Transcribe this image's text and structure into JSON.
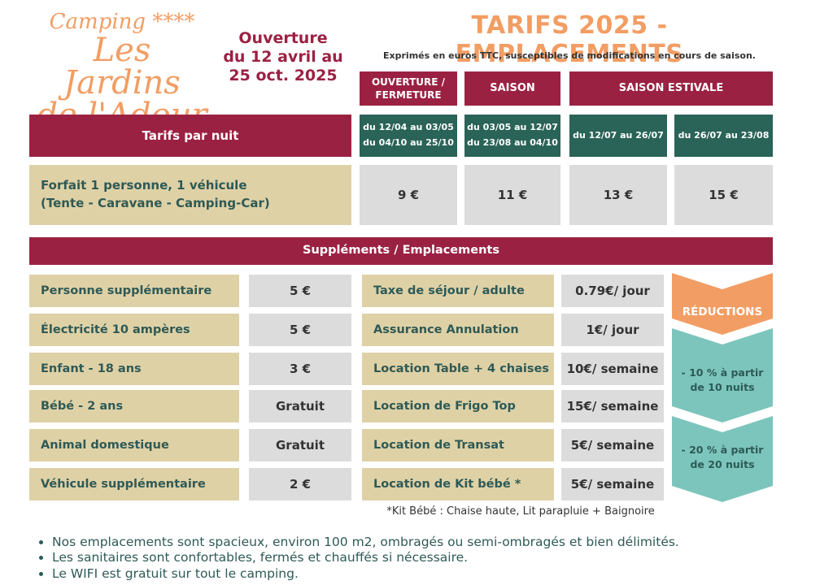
{
  "logo": {
    "line1": "Camping ****",
    "line2": "Les Jardins",
    "line3": "de l'Adour"
  },
  "opening": {
    "l1": "Ouverture",
    "l2": "du 12 avril au",
    "l3": "25 oct. 2025"
  },
  "title": "TARIFS 2025 - EMPLACEMENTS",
  "subtitle": "Exprimés en euros TTC, susceptibles de modifications en cours de saison.",
  "periods": {
    "p1": "OUVERTURE /\nFERMETURE",
    "p2": "SAISON",
    "p3": "SAISON ESTIVALE"
  },
  "nightly_label": "Tarifs par nuit",
  "dates": [
    "du 12/04 au 03/05\ndu 04/10 au 25/10",
    "du 03/05 au 12/07\ndu 23/08 au 04/10",
    "du 12/07 au 26/07",
    "du 26/07 au 23/08"
  ],
  "forfait": {
    "label": "Forfait 1 personne, 1 véhicule\n(Tente - Caravane - Camping-Car)",
    "prices": [
      "9 €",
      "11 €",
      "13 €",
      "15 €"
    ]
  },
  "supplements_title": "Suppléments / Emplacements",
  "supp_left": [
    {
      "label": "Personne supplémentaire",
      "price": "5 €"
    },
    {
      "label": "Électricité 10 ampères",
      "price": "5 €"
    },
    {
      "label": "Enfant - 18 ans",
      "price": "3 €"
    },
    {
      "label": "Bébé - 2 ans",
      "price": "Gratuit"
    },
    {
      "label": "Animal domestique",
      "price": "Gratuit"
    },
    {
      "label": "Véhicule supplémentaire",
      "price": "2 €"
    }
  ],
  "supp_right": [
    {
      "label": "Taxe de séjour / adulte",
      "price": "0.79€/ jour"
    },
    {
      "label": "Assurance Annulation",
      "price": "1€/ jour"
    },
    {
      "label": "Location Table + 4 chaises",
      "price": "10€/ semaine"
    },
    {
      "label": "Location de Frigo Top",
      "price": "15€/ semaine"
    },
    {
      "label": "Location de Transat",
      "price": "5€/ semaine"
    },
    {
      "label": "Location de Kit bébé *",
      "price": "5€/ semaine"
    }
  ],
  "reductions": {
    "title": "RÉDUCTIONS",
    "r1": "- 10 % à partir\nde 10 nuits",
    "r2": "- 20 % à partir\nde 20 nuits"
  },
  "footnote": "*Kit Bébé : Chaise haute, Lit parapluie + Baignoire",
  "bullets": [
    "Nos emplacements sont spacieux, environ 100 m2, ombragés ou semi-ombragés et bien délimités.",
    "Les sanitaires sont confortables, fermés et chauffés si nécessaire.",
    "Le WIFI est gratuit sur tout le camping."
  ],
  "colors": {
    "bordeaux": "#9b2143",
    "green": "#2a6357",
    "beige": "#dfd1a6",
    "grey": "#dcdcdc",
    "orange": "#f29d63",
    "teal": "#7cc5bc"
  }
}
